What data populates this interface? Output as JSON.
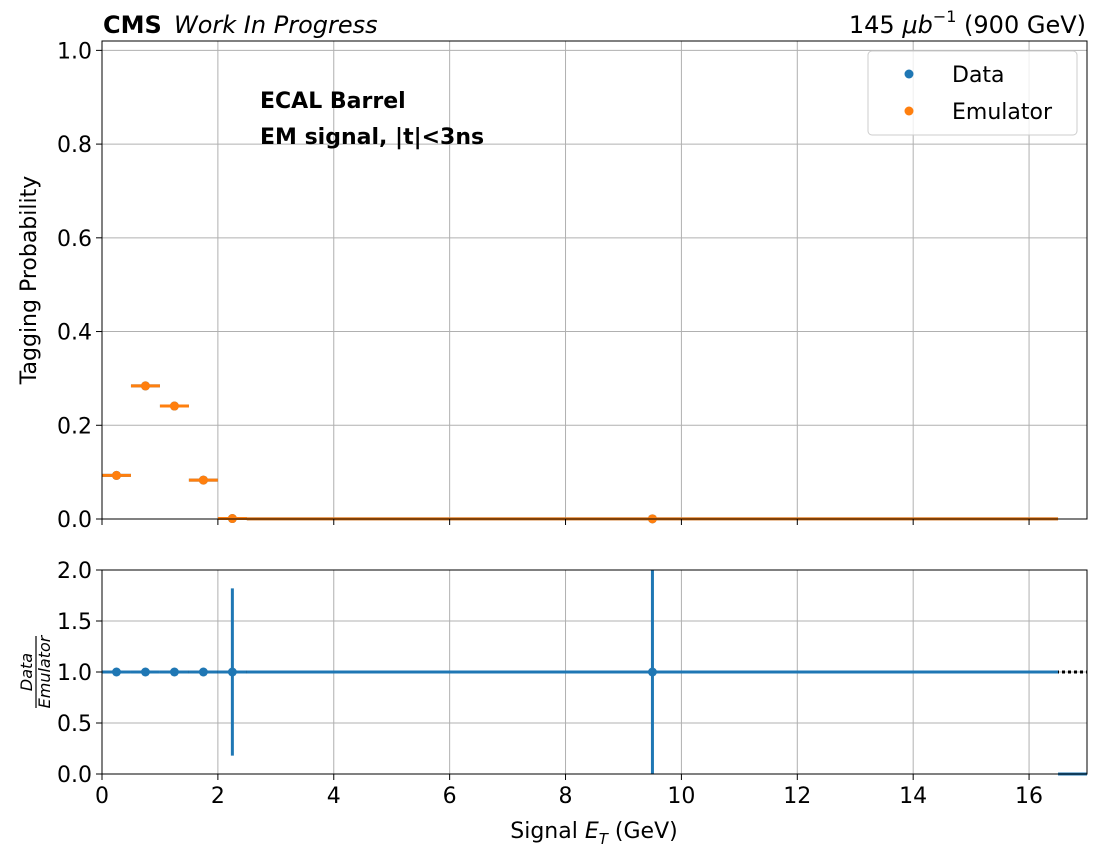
{
  "header": {
    "experiment": "CMS",
    "status": "Work In Progress",
    "lumi_value": "145 ",
    "lumi_unit": "μb",
    "lumi_exp": "−1",
    "energy": " (900 GeV)"
  },
  "annotation": {
    "line1": "ECAL Barrel",
    "line2": "EM signal, |t|<3ns"
  },
  "colors": {
    "data": "#1f77b4",
    "emulator": "#ff7f0e",
    "grid": "#b0b0b0"
  },
  "chart_data": [
    {
      "type": "scatter",
      "role": "main",
      "title": "",
      "xlabel": "",
      "ylabel": "Tagging Probability",
      "xlim": [
        0,
        17
      ],
      "ylim": [
        0,
        1.02
      ],
      "yticks": [
        0.0,
        0.2,
        0.4,
        0.6,
        0.8,
        1.0
      ],
      "ytick_labels": [
        "0.0",
        "0.2",
        "0.4",
        "0.6",
        "0.8",
        "1.0"
      ],
      "grid": true,
      "legend": {
        "placement": "top-right",
        "entries": [
          "Data",
          "Emulator"
        ]
      },
      "series": [
        {
          "name": "Data",
          "color": "#1f77b4",
          "points": [
            {
              "x": 0.25,
              "xlo": 0,
              "xhi": 0.5,
              "y": 0.093
            },
            {
              "x": 0.75,
              "xlo": 0.5,
              "xhi": 1.0,
              "y": 0.284
            },
            {
              "x": 1.25,
              "xlo": 1.0,
              "xhi": 1.5,
              "y": 0.241
            },
            {
              "x": 1.75,
              "xlo": 1.5,
              "xhi": 2.0,
              "y": 0.083
            },
            {
              "x": 2.25,
              "xlo": 2.0,
              "xhi": 2.5,
              "y": 0.001
            },
            {
              "x": 9.5,
              "xlo": 2.5,
              "xhi": 16.5,
              "y": 0.0004
            }
          ]
        },
        {
          "name": "Emulator",
          "color": "#ff7f0e",
          "points": [
            {
              "x": 0.25,
              "xlo": 0,
              "xhi": 0.5,
              "y": 0.093
            },
            {
              "x": 0.75,
              "xlo": 0.5,
              "xhi": 1.0,
              "y": 0.284
            },
            {
              "x": 1.25,
              "xlo": 1.0,
              "xhi": 1.5,
              "y": 0.241
            },
            {
              "x": 1.75,
              "xlo": 1.5,
              "xhi": 2.0,
              "y": 0.083
            },
            {
              "x": 2.25,
              "xlo": 2.0,
              "xhi": 2.5,
              "y": 0.001
            },
            {
              "x": 9.5,
              "xlo": 2.5,
              "xhi": 16.5,
              "y": 0.0004
            }
          ]
        }
      ]
    },
    {
      "type": "scatter",
      "role": "ratio",
      "title": "",
      "xlabel": "Signal E_T (GeV)",
      "xlabel_main": "Signal ",
      "xlabel_sym": "E",
      "xlabel_sub": "T",
      "xlabel_unit": " (GeV)",
      "ylabel_num": "Data",
      "ylabel_den": "Emulator",
      "xlim": [
        0,
        17
      ],
      "ylim": [
        0,
        2.0
      ],
      "xticks": [
        0,
        2,
        4,
        6,
        8,
        10,
        12,
        14,
        16
      ],
      "xtick_labels": [
        "0",
        "2",
        "4",
        "6",
        "8",
        "10",
        "12",
        "14",
        "16"
      ],
      "yticks": [
        0.0,
        0.5,
        1.0,
        1.5,
        2.0
      ],
      "ytick_labels": [
        "0.0",
        "0.5",
        "1.0",
        "1.5",
        "2.0"
      ],
      "grid": true,
      "reference_line": 1.0,
      "series": [
        {
          "name": "Data/Emulator",
          "color": "#1f77b4",
          "points": [
            {
              "x": 0.25,
              "xlo": 0,
              "xhi": 0.5,
              "y": 1.0,
              "ylo": 0.98,
              "yhi": 1.02
            },
            {
              "x": 0.75,
              "xlo": 0.5,
              "xhi": 1.0,
              "y": 1.0,
              "ylo": 0.99,
              "yhi": 1.01
            },
            {
              "x": 1.25,
              "xlo": 1.0,
              "xhi": 1.5,
              "y": 1.0,
              "ylo": 0.99,
              "yhi": 1.01
            },
            {
              "x": 1.75,
              "xlo": 1.5,
              "xhi": 2.0,
              "y": 1.0,
              "ylo": 0.96,
              "yhi": 1.04
            },
            {
              "x": 2.25,
              "xlo": 2.0,
              "xhi": 2.5,
              "y": 1.0,
              "ylo": 0.18,
              "yhi": 1.82
            },
            {
              "x": 9.5,
              "xlo": 2.5,
              "xhi": 16.5,
              "y": 1.0,
              "ylo": 0.0,
              "yhi": 2.0
            },
            {
              "x": 16.75,
              "xlo": 16.5,
              "xhi": 17.0,
              "y": 0.0,
              "ylo": 0.0,
              "yhi": 0.0,
              "marker": false
            }
          ]
        }
      ]
    }
  ]
}
